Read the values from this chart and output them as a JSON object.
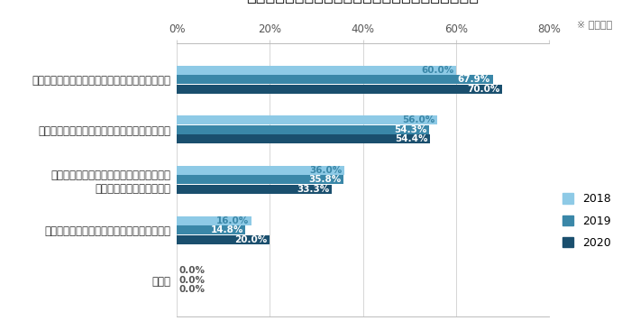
{
  "title": "『図』過去調査との比較　統合分析を実施すべき理由",
  "subtitle": "※ 複数回答",
  "categories": [
    "各広告施策の投資対効果を横断的に把握するため",
    "各広告施策に対する予算配分を最適化するため",
    "統合的に分析しないと広告施策への評価が\n感覚的になってしまうため",
    "チーム内で情報共有し、共通理解を得るため",
    "その他"
  ],
  "series": {
    "2018": [
      60.0,
      56.0,
      36.0,
      16.0,
      0.0
    ],
    "2019": [
      67.9,
      54.3,
      35.8,
      14.8,
      0.0
    ],
    "2020": [
      70.0,
      54.4,
      33.3,
      20.0,
      0.0
    ]
  },
  "colors": {
    "2018": "#8ecae6",
    "2019": "#3a87a8",
    "2020": "#1a4f6e"
  },
  "label_colors": {
    "2018": "#3a87a8",
    "2019": "#ffffff",
    "2020": "#ffffff"
  },
  "xlim": [
    0,
    80
  ],
  "xticks": [
    0,
    20,
    40,
    60,
    80
  ],
  "xticklabels": [
    "0%",
    "20%",
    "40%",
    "60%",
    "80%"
  ],
  "bar_height": 0.18,
  "bar_gap": 0.01,
  "background_color": "#ffffff",
  "grid_color": "#d0d0d0",
  "border_color": "#bbbbbb",
  "title_fontsize": 13,
  "subtitle_fontsize": 8,
  "axis_fontsize": 8.5,
  "label_fontsize": 7.5,
  "category_fontsize": 8.5
}
